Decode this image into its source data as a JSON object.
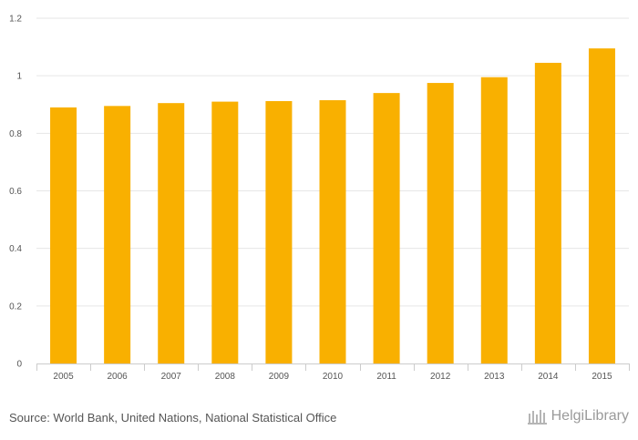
{
  "chart_data": {
    "type": "bar",
    "categories": [
      "2005",
      "2006",
      "2007",
      "2008",
      "2009",
      "2010",
      "2011",
      "2012",
      "2013",
      "2014",
      "2015"
    ],
    "values": [
      0.89,
      0.895,
      0.905,
      0.91,
      0.912,
      0.915,
      0.94,
      0.975,
      0.995,
      1.045,
      1.095
    ],
    "title": "",
    "xlabel": "",
    "ylabel": "",
    "ylim": [
      0,
      1.2
    ],
    "yticks": [
      0,
      0.2,
      0.4,
      0.6,
      0.8,
      1,
      1.2
    ],
    "ytick_labels": [
      "0",
      "0.2",
      "0.4",
      "0.6",
      "0.8",
      "1",
      "1.2"
    ],
    "grid": true,
    "bar_color": "#f9b000"
  },
  "footer": {
    "source": "Source: World Bank, United Nations, National Statistical Office",
    "brand": "HelgiLibrary",
    "brand_icon": "library-icon"
  }
}
